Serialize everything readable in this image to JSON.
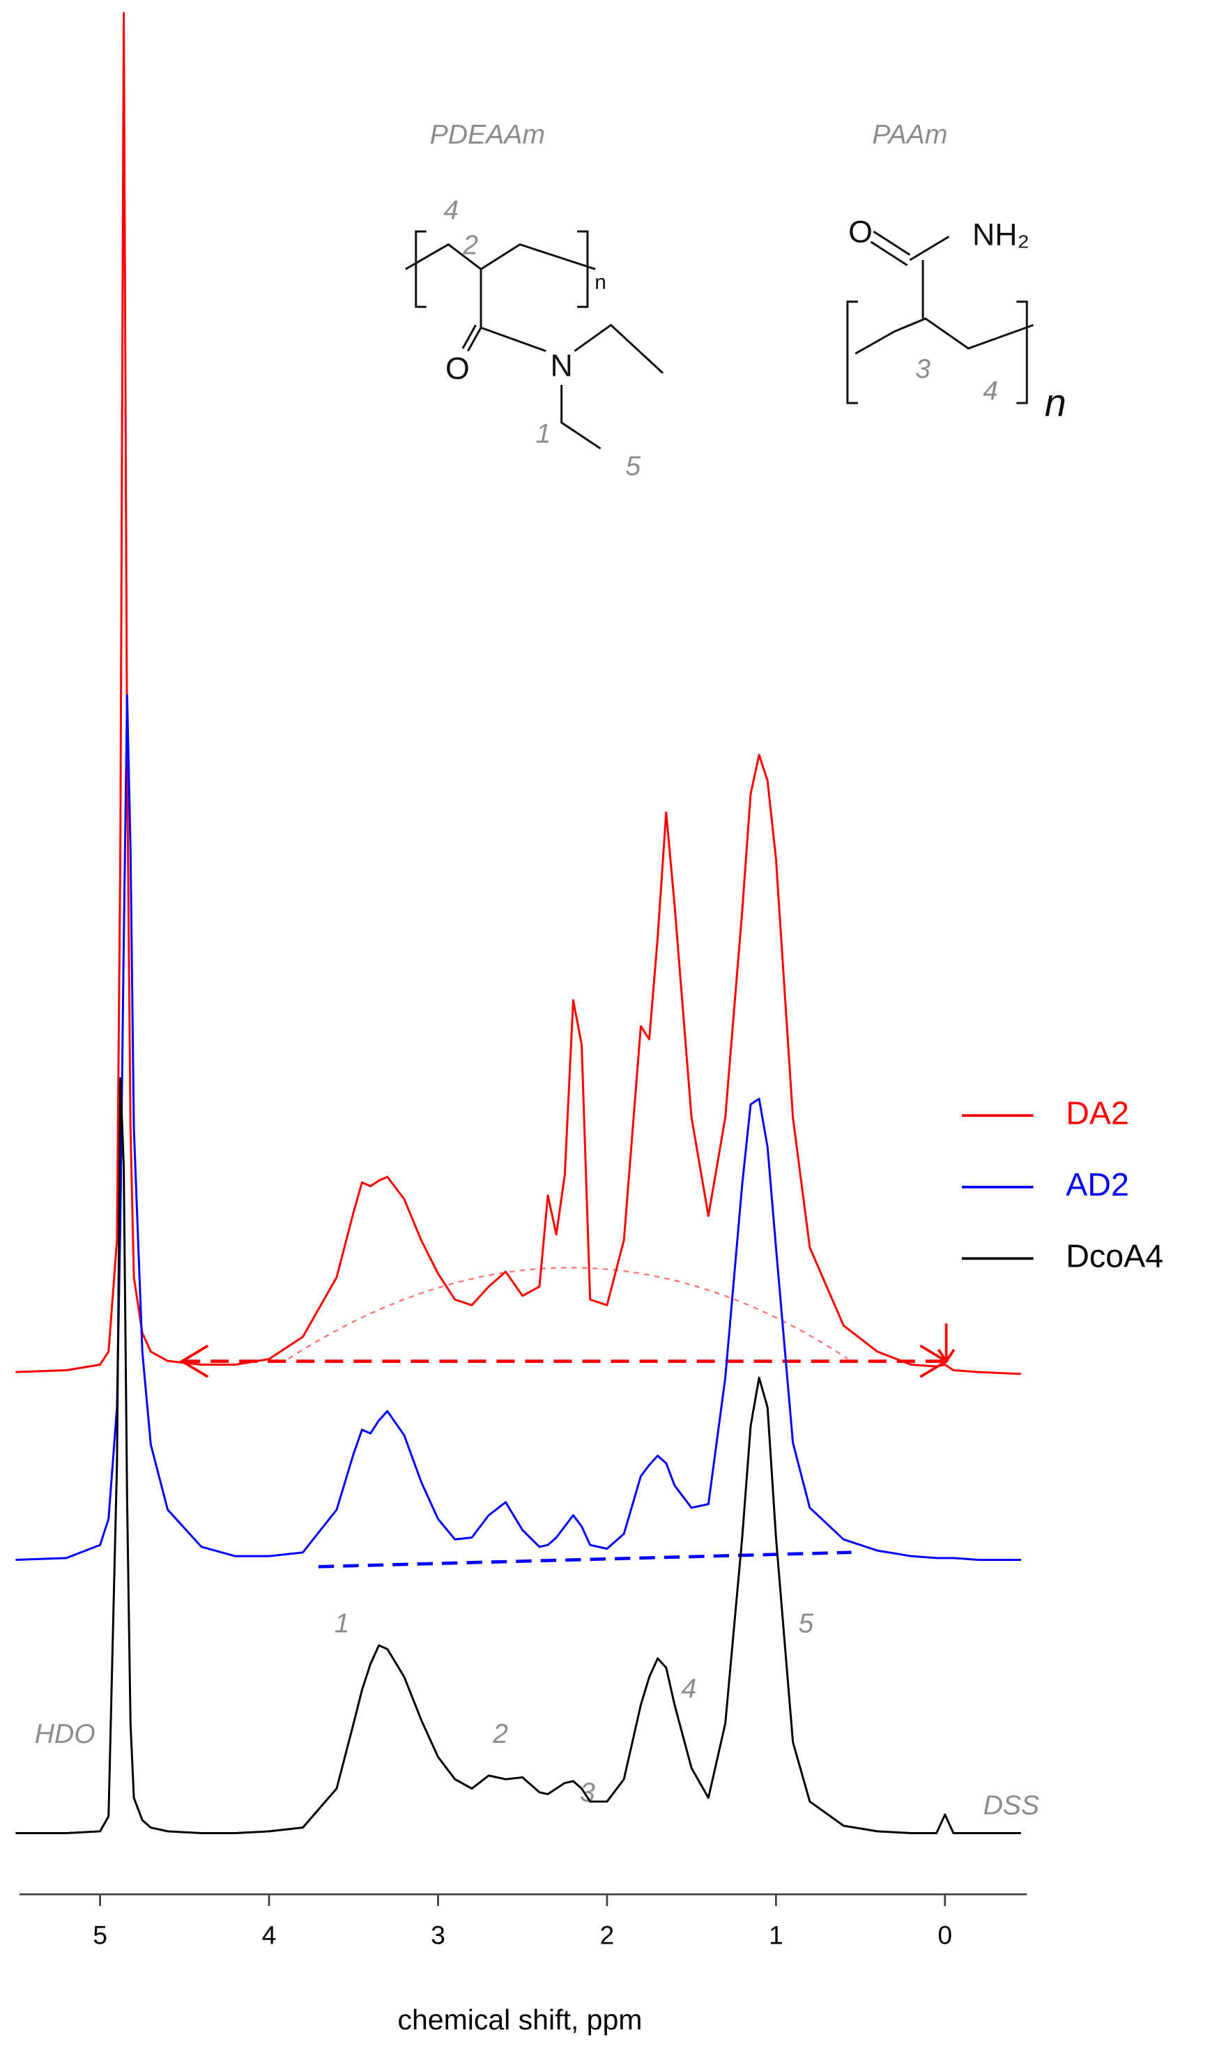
{
  "chart_data": {
    "type": "line",
    "x_label": "chemical shift, ppm",
    "xlim": [
      5.5,
      -0.5
    ],
    "xticks": [
      5,
      4,
      3,
      2,
      1,
      0
    ],
    "ylim": [
      0,
      100
    ],
    "legend": "right",
    "x": [
      5.5,
      5.2,
      5.0,
      4.95,
      4.9,
      4.88,
      4.86,
      4.84,
      4.82,
      4.8,
      4.75,
      4.7,
      4.6,
      4.4,
      4.2,
      4.0,
      3.8,
      3.6,
      3.5,
      3.45,
      3.4,
      3.35,
      3.3,
      3.2,
      3.1,
      3.0,
      2.9,
      2.8,
      2.7,
      2.6,
      2.5,
      2.4,
      2.35,
      2.3,
      2.25,
      2.2,
      2.15,
      2.1,
      2.0,
      1.9,
      1.8,
      1.75,
      1.7,
      1.65,
      1.6,
      1.5,
      1.4,
      1.3,
      1.2,
      1.15,
      1.1,
      1.05,
      1.0,
      0.9,
      0.8,
      0.6,
      0.4,
      0.2,
      0.05,
      0.0,
      -0.05,
      -0.2,
      -0.45
    ],
    "series": [
      {
        "name": "DA2",
        "color": "#ff0000",
        "values": [
          26.9,
          27.0,
          27.3,
          28.0,
          34,
          55,
          100,
          60,
          40,
          32,
          29,
          28,
          27.5,
          27.3,
          27.3,
          27.6,
          28.8,
          32,
          35.5,
          37.1,
          36.9,
          37.2,
          37.4,
          36.2,
          34.0,
          32.2,
          30.8,
          30.5,
          31.5,
          32.3,
          31.0,
          31.5,
          36.4,
          34.3,
          37.5,
          46.9,
          44.5,
          30.8,
          30.5,
          34.0,
          45.5,
          44.8,
          50.3,
          57.0,
          52.0,
          40.6,
          35.3,
          40.6,
          51.7,
          58.0,
          60.1,
          58.7,
          54.5,
          40.6,
          33.6,
          29.4,
          28.0,
          27.3,
          27.2,
          27.3,
          27.0,
          26.9,
          26.8
        ]
      },
      {
        "name": "AD2",
        "color": "#0000ff",
        "values": [
          16.8,
          16.9,
          17.6,
          19.0,
          25,
          35,
          50,
          63.3,
          55,
          40,
          28,
          23,
          19.5,
          17.5,
          17.0,
          17.0,
          17.2,
          19.5,
          22.5,
          23.8,
          23.6,
          24.3,
          24.8,
          23.5,
          21.0,
          19.0,
          17.9,
          18.0,
          19.2,
          19.9,
          18.4,
          17.5,
          17.6,
          18.0,
          18.6,
          19.2,
          18.6,
          17.6,
          17.4,
          18.2,
          21.3,
          21.9,
          22.4,
          22.0,
          20.8,
          19.6,
          19.8,
          26.6,
          37.0,
          41.3,
          41.6,
          39.0,
          33.6,
          23.1,
          19.6,
          17.9,
          17.3,
          17.0,
          16.9,
          16.9,
          16.9,
          16.8,
          16.8
        ]
      },
      {
        "name": "DcoA4",
        "color": "#000000",
        "values": [
          2.1,
          2.1,
          2.2,
          3.0,
          22,
          42.7,
          38,
          20,
          8,
          4,
          2.8,
          2.4,
          2.2,
          2.1,
          2.1,
          2.2,
          2.4,
          4.5,
          8,
          9.8,
          11.2,
          12.2,
          12.0,
          10.5,
          8.2,
          6.2,
          5.0,
          4.5,
          5.2,
          5.0,
          5.1,
          4.3,
          4.2,
          4.5,
          4.8,
          4.9,
          4.5,
          3.8,
          3.8,
          5.0,
          9.0,
          10.5,
          11.5,
          11.0,
          9.0,
          5.6,
          4.0,
          8.0,
          18.0,
          24.0,
          26.6,
          25.0,
          18.0,
          7.0,
          3.8,
          2.5,
          2.2,
          2.1,
          2.1,
          3.1,
          2.1,
          2.1,
          2.1
        ]
      }
    ],
    "annotations": [
      "PDEAAm",
      "PAAm",
      "HDO",
      "1",
      "2",
      "3",
      "4",
      "5",
      "DSS"
    ],
    "structures": {
      "PDEAAm": [
        "4",
        "2",
        "n",
        "O",
        "N",
        "1",
        "5"
      ],
      "PAAm": [
        "O",
        "NH₂",
        "3",
        "4",
        "n"
      ]
    }
  }
}
